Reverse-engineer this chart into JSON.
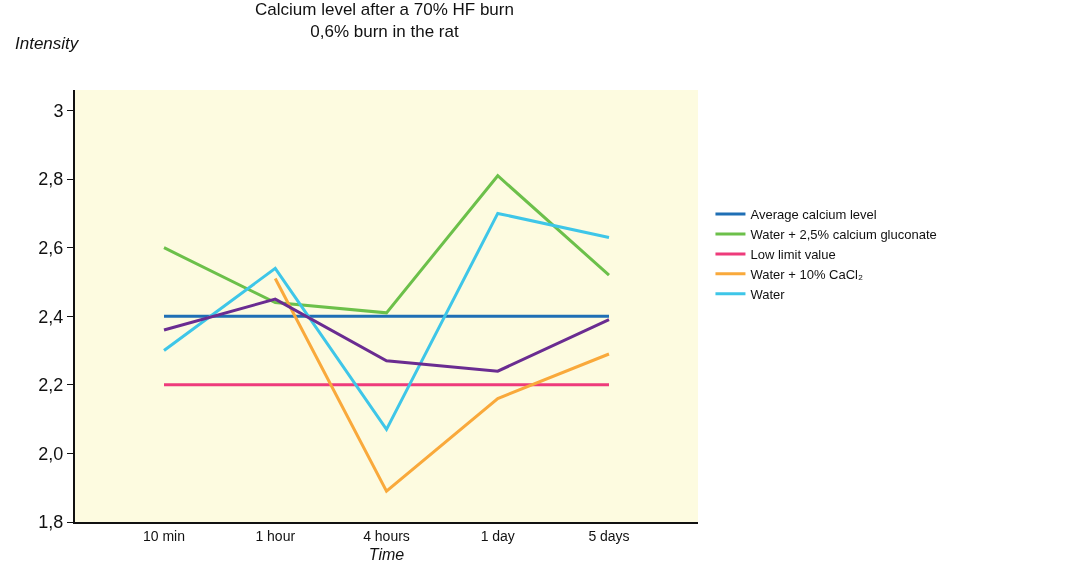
{
  "chart_data": {
    "type": "line",
    "title": "Calcium level after a 70% HF burn\n0,6% burn in the rat",
    "xlabel": "Time",
    "ylabel": "Intensity",
    "categories": [
      "10 min",
      "1 hour",
      "4 hours",
      "1 day",
      "5 days"
    ],
    "series": [
      {
        "name": "Average calcium level",
        "color": "#1f6fb5",
        "values": [
          2.4,
          2.4,
          2.4,
          2.4,
          2.4
        ]
      },
      {
        "name": "Water + 2,5% calcium gluconate",
        "color": "#6cc04a",
        "values": [
          2.6,
          2.44,
          2.41,
          2.81,
          2.52
        ]
      },
      {
        "name": "Low limit value",
        "color": "#ee3b7b",
        "values": [
          2.2,
          2.2,
          2.2,
          2.2,
          2.2
        ]
      },
      {
        "name": "Water + 10% CaCl₂",
        "color": "#f9a93b",
        "values": [
          null,
          2.51,
          1.89,
          2.16,
          2.29
        ]
      },
      {
        "name": "Water",
        "color": "#3ec6e8",
        "values": [
          2.3,
          2.54,
          2.07,
          2.7,
          2.63
        ]
      },
      {
        "color": "#6a2c91",
        "values": [
          2.36,
          2.45,
          2.27,
          2.24,
          2.39
        ]
      }
    ],
    "ylim": [
      1.8,
      3.06
    ],
    "yticks": [
      {
        "value": 1.8,
        "label": "1,8"
      },
      {
        "value": 2.0,
        "label": "2,0"
      },
      {
        "value": 2.2,
        "label": "2,2"
      },
      {
        "value": 2.4,
        "label": "2,4"
      },
      {
        "value": 2.6,
        "label": "2,6"
      },
      {
        "value": 2.8,
        "label": "2,8"
      },
      3
    ],
    "grid": false,
    "legend": "right",
    "marker": "none",
    "line_style": "solid"
  }
}
